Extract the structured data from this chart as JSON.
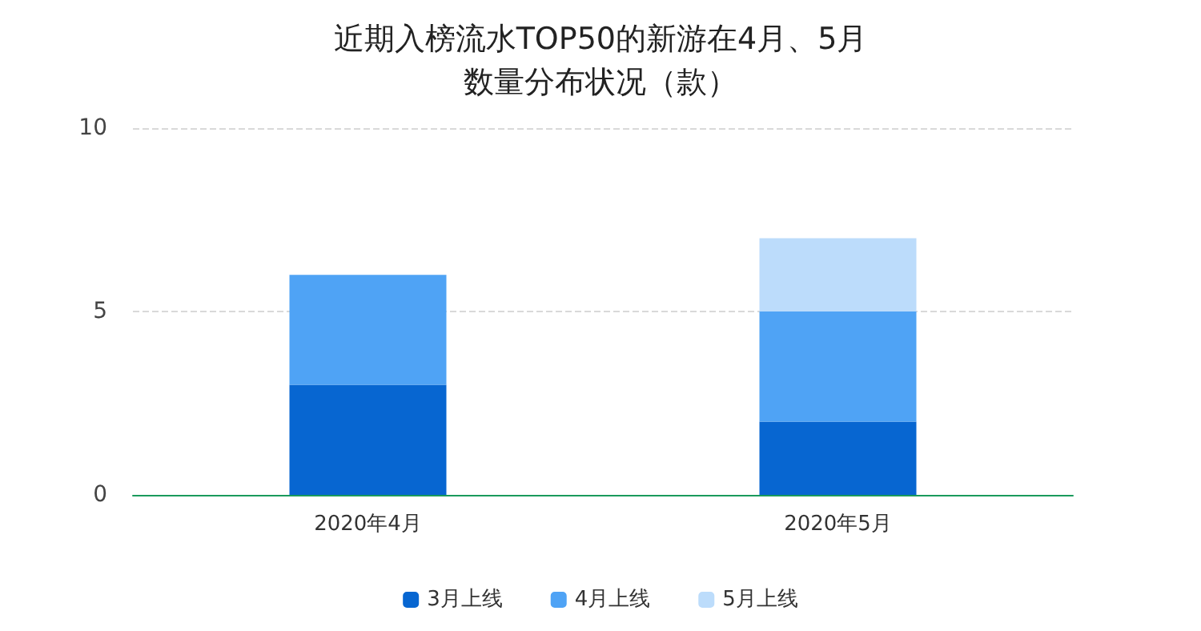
{
  "chart_data": {
    "type": "bar",
    "title": "近期入榜流水TOP50的新游在4月、5月数量分布状况（款）",
    "categories": [
      "2020年4月",
      "2020年5月"
    ],
    "stacked": true,
    "series": [
      {
        "name": "3月上线",
        "color": "#0766d1",
        "values": [
          3,
          2
        ]
      },
      {
        "name": "4月上线",
        "color": "#4fa3f5",
        "values": [
          3,
          3
        ]
      },
      {
        "name": "5月上线",
        "color": "#bcdcfb",
        "values": [
          0,
          2
        ]
      }
    ],
    "ylim": [
      0,
      10
    ],
    "yticks": [
      0,
      5,
      10
    ],
    "grid": "y",
    "legend": "bottom"
  }
}
